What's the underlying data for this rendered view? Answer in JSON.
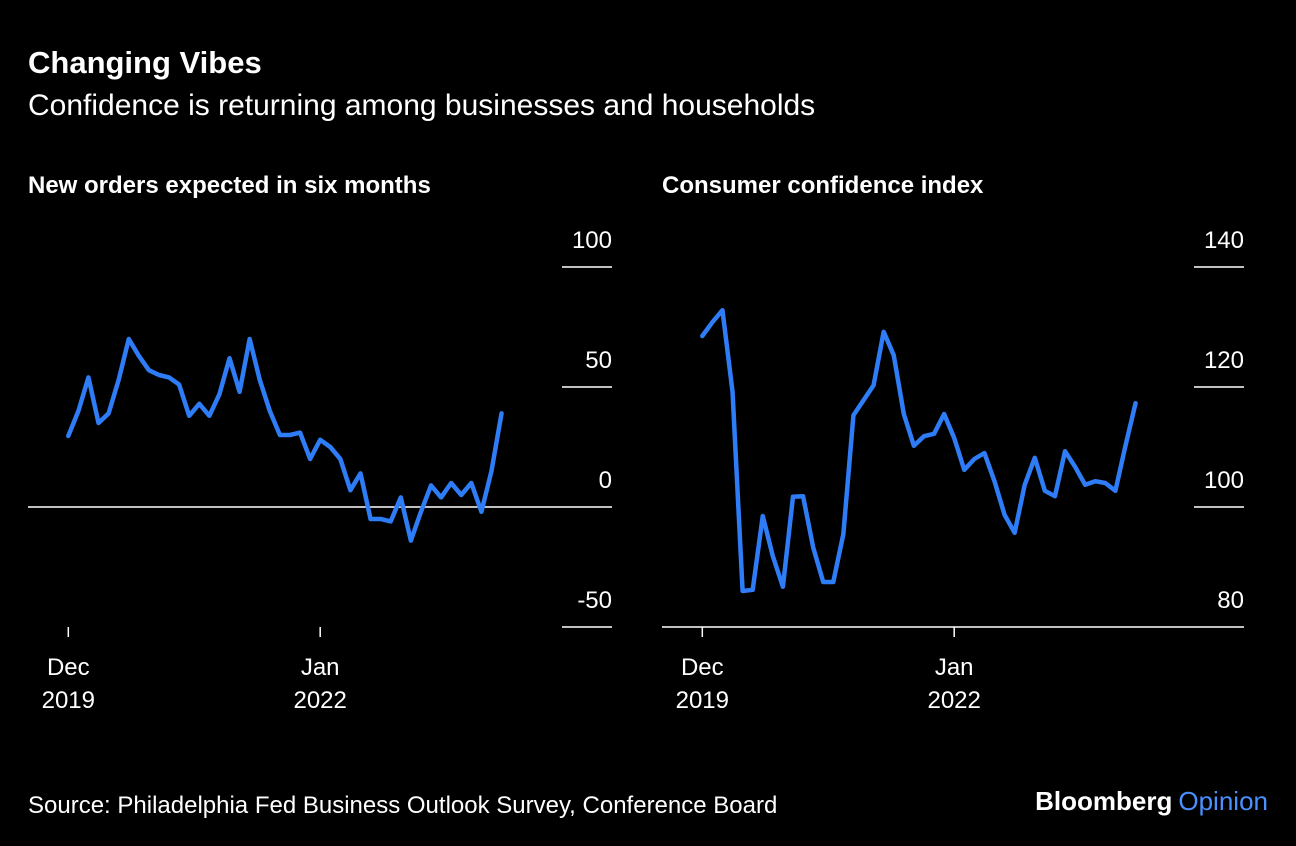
{
  "title": "Changing Vibes",
  "subtitle": "Confidence is returning among businesses and households",
  "source": "Source: Philadelphia Fed Business Outlook Survey, Conference Board",
  "brand": [
    "Bloomberg",
    "Opinion"
  ],
  "chart_data": [
    {
      "type": "line",
      "title": "New orders expected in six months",
      "color": "#2e7cf6",
      "x": [
        "2019-12",
        "2020-01",
        "2020-02",
        "2020-03",
        "2020-04",
        "2020-05",
        "2020-06",
        "2020-07",
        "2020-08",
        "2020-09",
        "2020-10",
        "2020-11",
        "2020-12",
        "2021-01",
        "2021-02",
        "2021-03",
        "2021-04",
        "2021-05",
        "2021-06",
        "2021-07",
        "2021-08",
        "2021-09",
        "2021-10",
        "2021-11",
        "2021-12",
        "2022-01",
        "2022-02",
        "2022-03",
        "2022-04",
        "2022-05",
        "2022-06",
        "2022-07",
        "2022-08",
        "2022-09",
        "2022-10",
        "2022-11",
        "2022-12",
        "2023-01",
        "2023-02",
        "2023-03",
        "2023-04",
        "2023-05",
        "2023-06",
        "2023-07"
      ],
      "values": [
        29.6,
        40,
        54,
        35,
        39,
        53,
        70,
        63,
        57,
        55,
        54,
        51,
        38,
        43,
        38,
        47,
        62,
        48,
        70,
        53,
        40,
        30,
        30,
        31,
        20,
        28,
        25,
        20,
        7,
        14,
        -5,
        -5,
        -6,
        4,
        -14,
        -2,
        9,
        4,
        10,
        5,
        10,
        -2,
        15,
        39
      ],
      "xlim": [
        "2019-08",
        "2024-01"
      ],
      "xticks": [
        {
          "value": "2019-12",
          "label": [
            "Dec",
            "2019"
          ]
        },
        {
          "value": "2022-01",
          "label": [
            "Jan",
            "2022"
          ]
        }
      ],
      "ylim": [
        -50,
        100
      ],
      "yticks": [
        -50,
        0,
        50,
        100
      ]
    },
    {
      "type": "line",
      "title": "Consumer confidence index",
      "color": "#2e7cf6",
      "x": [
        "2019-12",
        "2020-01",
        "2020-02",
        "2020-03",
        "2020-04",
        "2020-05",
        "2020-06",
        "2020-07",
        "2020-08",
        "2020-09",
        "2020-10",
        "2020-11",
        "2020-12",
        "2021-01",
        "2021-02",
        "2021-03",
        "2021-04",
        "2021-05",
        "2021-06",
        "2021-07",
        "2021-08",
        "2021-09",
        "2021-10",
        "2021-11",
        "2021-12",
        "2022-01",
        "2022-02",
        "2022-03",
        "2022-04",
        "2022-05",
        "2022-06",
        "2022-07",
        "2022-08",
        "2022-09",
        "2022-10",
        "2022-11",
        "2022-12",
        "2023-01",
        "2023-02",
        "2023-03",
        "2023-04",
        "2023-05",
        "2023-06",
        "2023-07"
      ],
      "values": [
        128.5,
        130.8,
        132.8,
        119.2,
        86,
        86.2,
        98.5,
        91.8,
        86.7,
        101.7,
        101.8,
        93.3,
        87.5,
        87.5,
        95.5,
        115.3,
        117.8,
        120.3,
        129.2,
        125.3,
        115.5,
        110.2,
        111.8,
        112.2,
        115.5,
        111.5,
        106.2,
        108,
        109,
        104.3,
        98.7,
        95.7,
        103.7,
        108.2,
        102.7,
        101.8,
        109.3,
        106.7,
        103.7,
        104.3,
        104,
        102.7,
        110.2,
        117.3
      ],
      "xlim": [
        "2019-08",
        "2024-01"
      ],
      "xticks": [
        {
          "value": "2019-12",
          "label": [
            "Dec",
            "2019"
          ]
        },
        {
          "value": "2022-01",
          "label": [
            "Jan",
            "2022"
          ]
        }
      ],
      "ylim": [
        80,
        140
      ],
      "yticks": [
        80,
        100,
        120,
        140
      ]
    }
  ]
}
